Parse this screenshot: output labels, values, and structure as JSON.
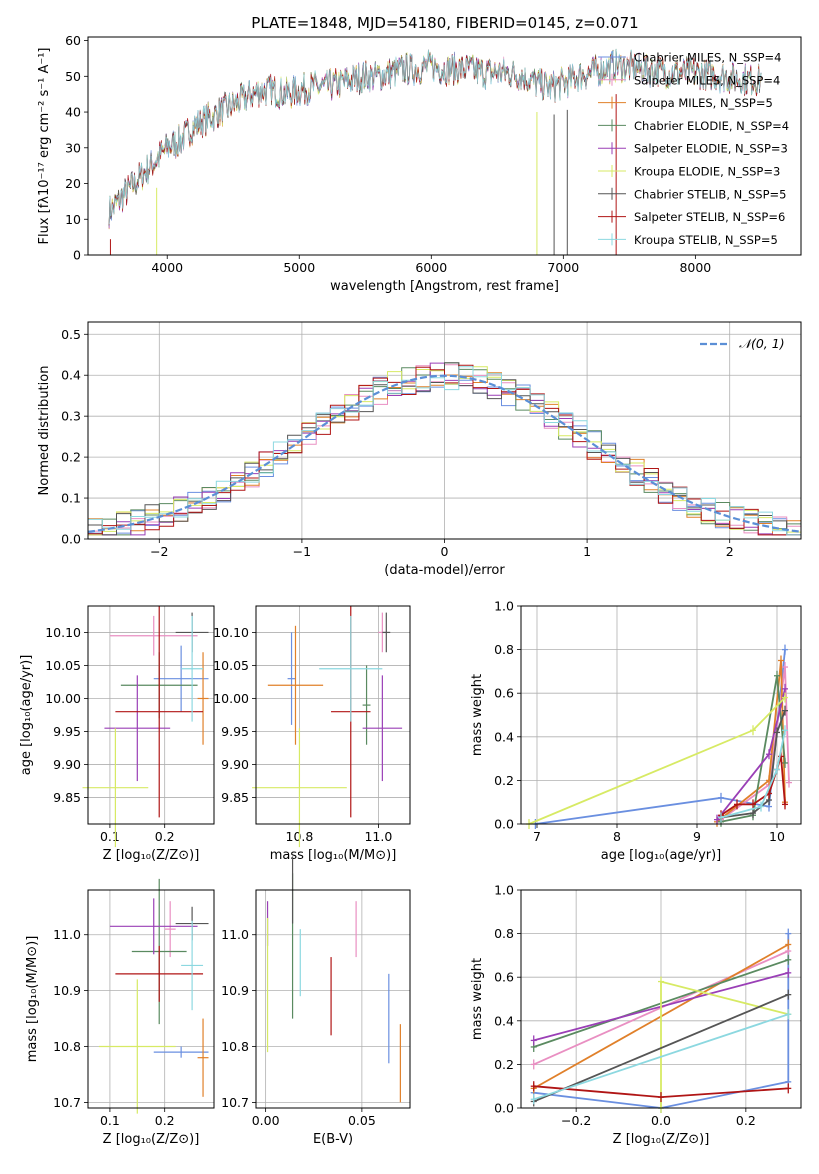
{
  "figure": {
    "title": "PLATE=1848, MJD=54180, FIBERID=0145, z=0.071"
  },
  "colors": [
    "#6a8fe0",
    "#e98fc2",
    "#e0802a",
    "#5a8a60",
    "#9a3fb6",
    "#d7ea64",
    "#555555",
    "#b01515",
    "#8cd8e0"
  ],
  "chart_data": [
    {
      "id": "spectrum",
      "type": "line",
      "xlabel": "wavelength [Angstrom, rest frame]",
      "ylabel": "Flux [fλ10⁻¹⁷ erg cm⁻² s⁻¹ A⁻¹]",
      "xlim": [
        3400,
        8800
      ],
      "ylim": [
        0,
        61
      ],
      "xticks": [
        "4000",
        "5000",
        "6000",
        "7000",
        "8000"
      ],
      "yticks": [
        "0",
        "10",
        "20",
        "30",
        "40",
        "50",
        "60"
      ],
      "legend": "top-right",
      "series": [
        {
          "name": "Chabrier MILES, N_SSP=4"
        },
        {
          "name": "Salpeter MILES, N_SSP=4"
        },
        {
          "name": "Kroupa MILES, N_SSP=5"
        },
        {
          "name": "Chabrier ELODIE, N_SSP=4"
        },
        {
          "name": "Salpeter ELODIE, N_SSP=3"
        },
        {
          "name": "Kroupa ELODIE, N_SSP=3"
        },
        {
          "name": "Chabrier STELIB, N_SSP=5"
        },
        {
          "name": "Salpeter STELIB, N_SSP=6"
        },
        {
          "name": "Kroupa STELIB, N_SSP=5"
        }
      ],
      "spectrum_shape": [
        [
          3560,
          12
        ],
        [
          3700,
          18
        ],
        [
          3800,
          22
        ],
        [
          3900,
          26
        ],
        [
          4000,
          30
        ],
        [
          4100,
          32
        ],
        [
          4200,
          36
        ],
        [
          4300,
          38
        ],
        [
          4400,
          40
        ],
        [
          4500,
          42
        ],
        [
          4600,
          44
        ],
        [
          4700,
          46
        ],
        [
          4800,
          46
        ],
        [
          4900,
          45
        ],
        [
          5000,
          46
        ],
        [
          5100,
          47
        ],
        [
          5200,
          47
        ],
        [
          5300,
          48
        ],
        [
          5400,
          49
        ],
        [
          5500,
          50
        ],
        [
          5600,
          50
        ],
        [
          5700,
          51
        ],
        [
          5800,
          52
        ],
        [
          5900,
          52
        ],
        [
          6000,
          53
        ],
        [
          6100,
          52
        ],
        [
          6200,
          52
        ],
        [
          6300,
          52
        ],
        [
          6400,
          51
        ],
        [
          6500,
          51
        ],
        [
          6600,
          51
        ],
        [
          6700,
          50
        ],
        [
          6800,
          48
        ],
        [
          6900,
          47
        ],
        [
          7000,
          48
        ],
        [
          7100,
          50
        ],
        [
          7200,
          51
        ],
        [
          7300,
          52
        ],
        [
          7400,
          53
        ],
        [
          7600,
          52
        ],
        [
          7800,
          51
        ],
        [
          8000,
          51
        ],
        [
          8200,
          50
        ],
        [
          8400,
          49
        ],
        [
          8500,
          49
        ]
      ],
      "dropouts": [
        3570,
        3920,
        6800,
        6930,
        7030,
        7400
      ]
    },
    {
      "id": "residuals",
      "type": "line",
      "xlabel": "(data-model)/error",
      "ylabel": "Normed distribution",
      "xlim": [
        -2.5,
        2.5
      ],
      "ylim": [
        0,
        0.53
      ],
      "xticks": [
        "−2",
        "−1",
        "0",
        "1",
        "2"
      ],
      "xtick_values": [
        -2,
        -1,
        0,
        1,
        2
      ],
      "yticks": [
        "0.0",
        "0.1",
        "0.2",
        "0.3",
        "0.4",
        "0.5"
      ],
      "legend": "top-right",
      "reference_label": "𝒩(0, 1)"
    },
    {
      "id": "age-vs-Z",
      "type": "scatter",
      "xlabel": "Z [log₁₀(Z/Z⊙)]",
      "ylabel": "age  [log₁₀(age/yr)]",
      "xlim": [
        0.06,
        0.29
      ],
      "ylim": [
        9.81,
        10.14
      ],
      "xticks": [
        "0.1",
        "0.2"
      ],
      "xtick_values": [
        0.1,
        0.2
      ],
      "yticks": [
        "9.85",
        "9.90",
        "9.95",
        "10.00",
        "10.05",
        "10.10"
      ],
      "ytick_values": [
        9.85,
        9.9,
        9.95,
        10.0,
        10.05,
        10.1
      ],
      "points": [
        {
          "x": 0.23,
          "xerr": 0.05,
          "y": 10.03,
          "yerr": 0.05
        },
        {
          "x": 0.18,
          "xerr": 0.08,
          "y": 10.095,
          "yerr": 0.03
        },
        {
          "x": 0.27,
          "xerr": 0.01,
          "y": 10.0,
          "yerr": 0.07
        },
        {
          "x": 0.19,
          "xerr": 0.07,
          "y": 10.02,
          "yerr": 0.05
        },
        {
          "x": 0.15,
          "xerr": 0.06,
          "y": 9.955,
          "yerr": 0.08
        },
        {
          "x": 0.11,
          "xerr": 0.06,
          "y": 9.865,
          "yerr": 0.09
        },
        {
          "x": 0.25,
          "xerr": 0.03,
          "y": 10.1,
          "yerr": 0.03
        },
        {
          "x": 0.19,
          "xerr": 0.08,
          "y": 9.98,
          "yerr": 0.16
        },
        {
          "x": 0.25,
          "xerr": 0.02,
          "y": 10.045,
          "yerr": 0.08
        }
      ]
    },
    {
      "id": "age-vs-mass",
      "type": "scatter",
      "xlabel": "mass [log₁₀(M/M⊙)]",
      "ylabel": "",
      "xlim": [
        10.69,
        11.08
      ],
      "ylim": [
        9.81,
        10.14
      ],
      "xticks": [
        "10.8",
        "11.0"
      ],
      "xtick_values": [
        10.8,
        11.0
      ],
      "yticks": [
        "9.85",
        "9.90",
        "9.95",
        "10.00",
        "10.05",
        "10.10"
      ],
      "ytick_values": [
        9.85,
        9.9,
        9.95,
        10.0,
        10.05,
        10.1
      ],
      "points": [
        {
          "x": 10.78,
          "xerr": 0.01,
          "y": 10.03,
          "yerr": 0.07
        },
        {
          "x": 11.01,
          "xerr": 0.01,
          "y": 10.1,
          "yerr": 0.03
        },
        {
          "x": 10.79,
          "xerr": 0.07,
          "y": 10.02,
          "yerr": 0.09
        },
        {
          "x": 10.97,
          "xerr": 0.01,
          "y": 9.99,
          "yerr": 0.06
        },
        {
          "x": 11.01,
          "xerr": 0.05,
          "y": 9.955,
          "yerr": 0.08
        },
        {
          "x": 10.8,
          "xerr": 0.12,
          "y": 9.865,
          "yerr": 0.09
        },
        {
          "x": 11.02,
          "xerr": 0.01,
          "y": 10.1,
          "yerr": 0.03
        },
        {
          "x": 10.93,
          "xerr": 0.05,
          "y": 9.98,
          "yerr": 0.16
        },
        {
          "x": 10.93,
          "xerr": 0.08,
          "y": 10.045,
          "yerr": 0.08
        }
      ]
    },
    {
      "id": "weight-vs-age",
      "type": "line",
      "xlabel": "age  [log₁₀(age/yr)]",
      "ylabel": "mass weight",
      "xlim": [
        6.8,
        10.3
      ],
      "ylim": [
        0,
        1
      ],
      "xticks": [
        "7",
        "8",
        "9",
        "10"
      ],
      "xtick_values": [
        7,
        8,
        9,
        10
      ],
      "yticks": [
        "0.0",
        "0.2",
        "0.4",
        "0.6",
        "0.8",
        "1.0"
      ],
      "ytick_values": [
        0,
        0.2,
        0.4,
        0.6,
        0.8,
        1.0
      ],
      "series": [
        {
          "x": [
            6.98,
            9.3,
            9.9,
            10.1
          ],
          "y": [
            0.0,
            0.12,
            0.08,
            0.8
          ]
        },
        {
          "x": [
            9.3,
            9.9,
            10.1,
            10.15
          ],
          "y": [
            0.02,
            0.18,
            0.72,
            0.19
          ]
        },
        {
          "x": [
            9.25,
            9.9,
            10.05,
            10.1
          ],
          "y": [
            0.01,
            0.2,
            0.75,
            0.1
          ]
        },
        {
          "x": [
            9.3,
            9.7,
            10.0,
            10.1
          ],
          "y": [
            0.01,
            0.04,
            0.68,
            0.28
          ]
        },
        {
          "x": [
            9.25,
            9.9,
            10.1
          ],
          "y": [
            0.02,
            0.32,
            0.62
          ]
        },
        {
          "x": [
            6.9,
            9.7,
            10.1
          ],
          "y": [
            0.0,
            0.43,
            0.58
          ]
        },
        {
          "x": [
            9.3,
            9.7,
            9.9,
            10.0,
            10.1
          ],
          "y": [
            0.03,
            0.05,
            0.11,
            0.42,
            0.52
          ]
        },
        {
          "x": [
            9.3,
            9.5,
            9.7,
            9.9,
            10.0,
            10.05,
            10.1
          ],
          "y": [
            0.04,
            0.09,
            0.09,
            0.14,
            0.25,
            0.31,
            0.09
          ]
        },
        {
          "x": [
            9.3,
            9.8,
            10.0,
            10.1
          ],
          "y": [
            0.03,
            0.08,
            0.25,
            0.43
          ]
        }
      ]
    },
    {
      "id": "mass-vs-Z",
      "type": "scatter",
      "xlabel": "Z [log₁₀(Z/Z⊙)]",
      "ylabel": "mass [log₁₀(M/M⊙)]",
      "xlim": [
        0.06,
        0.29
      ],
      "ylim": [
        10.69,
        11.08
      ],
      "xticks": [
        "0.1",
        "0.2"
      ],
      "xtick_values": [
        0.1,
        0.2
      ],
      "yticks": [
        "10.7",
        "10.8",
        "10.9",
        "11.0"
      ],
      "ytick_values": [
        10.7,
        10.8,
        10.9,
        11.0
      ],
      "points": [
        {
          "x": 0.23,
          "xerr": 0.05,
          "y": 10.79,
          "yerr": 0.01
        },
        {
          "x": 0.21,
          "xerr": 0.01,
          "y": 11.01,
          "yerr": 0.05
        },
        {
          "x": 0.27,
          "xerr": 0.01,
          "y": 10.78,
          "yerr": 0.07
        },
        {
          "x": 0.19,
          "xerr": 0.05,
          "y": 10.97,
          "yerr": 0.13
        },
        {
          "x": 0.18,
          "xerr": 0.08,
          "y": 11.015,
          "yerr": 0.05
        },
        {
          "x": 0.15,
          "xerr": 0.07,
          "y": 10.8,
          "yerr": 0.12
        },
        {
          "x": 0.25,
          "xerr": 0.03,
          "y": 11.02,
          "yerr": 0.03
        },
        {
          "x": 0.19,
          "xerr": 0.08,
          "y": 10.93,
          "yerr": 0.05
        },
        {
          "x": 0.25,
          "xerr": 0.02,
          "y": 10.945,
          "yerr": 0.08
        }
      ]
    },
    {
      "id": "mass-vs-EBV",
      "type": "scatter",
      "xlabel": "E(B-V)",
      "ylabel": "",
      "xlim": [
        -0.005,
        0.075
      ],
      "ylim": [
        10.69,
        11.08
      ],
      "xticks": [
        "0.00",
        "0.05"
      ],
      "xtick_values": [
        0.0,
        0.05
      ],
      "yticks": [
        "10.7",
        "10.8",
        "10.9",
        "11.0"
      ],
      "ytick_values": [
        10.7,
        10.8,
        10.9,
        11.0
      ],
      "points": [
        {
          "x": 0.064,
          "xerr": 0,
          "y": 10.85,
          "yerr": 0.08
        },
        {
          "x": 0.047,
          "xerr": 0,
          "y": 11.01,
          "yerr": 0.05
        },
        {
          "x": 0.07,
          "xerr": 0,
          "y": 10.77,
          "yerr": 0.07
        },
        {
          "x": 0.014,
          "xerr": 0,
          "y": 10.98,
          "yerr": 0.13
        },
        {
          "x": 0.001,
          "xerr": 0,
          "y": 11.02,
          "yerr": 0.04
        },
        {
          "x": 0.001,
          "xerr": 0,
          "y": 10.91,
          "yerr": 0.12
        },
        {
          "x": 0.014,
          "xerr": 0,
          "y": 11.08,
          "yerr": 0.06
        },
        {
          "x": 0.034,
          "xerr": 0,
          "y": 10.89,
          "yerr": 0.07
        },
        {
          "x": 0.018,
          "xerr": 0,
          "y": 10.95,
          "yerr": 0.06
        }
      ]
    },
    {
      "id": "weight-vs-Z",
      "type": "line",
      "xlabel": "Z [log₁₀(Z/Z⊙)]",
      "ylabel": "mass weight",
      "xlim": [
        -0.33,
        0.33
      ],
      "ylim": [
        0,
        1
      ],
      "xticks": [
        "−0.2",
        "0.0",
        "0.2"
      ],
      "xtick_values": [
        -0.2,
        0.0,
        0.2
      ],
      "yticks": [
        "0.0",
        "0.2",
        "0.4",
        "0.6",
        "0.8",
        "1.0"
      ],
      "ytick_values": [
        0,
        0.2,
        0.4,
        0.6,
        0.8,
        1.0
      ],
      "series": [
        {
          "x": [
            -0.3,
            0.0,
            0.3,
            0.3
          ],
          "y": [
            0.07,
            0.0,
            0.12,
            0.8
          ]
        },
        {
          "x": [
            -0.3,
            0.3
          ],
          "y": [
            0.2,
            0.72
          ]
        },
        {
          "x": [
            -0.3,
            0.3
          ],
          "y": [
            0.09,
            0.75
          ]
        },
        {
          "x": [
            -0.3,
            0.3
          ],
          "y": [
            0.28,
            0.68
          ]
        },
        {
          "x": [
            -0.3,
            0.3
          ],
          "y": [
            0.31,
            0.62
          ]
        },
        {
          "x": [
            0.0,
            0.0,
            0.3
          ],
          "y": [
            0.0,
            0.58,
            0.43
          ]
        },
        {
          "x": [
            -0.3,
            0.3
          ],
          "y": [
            0.03,
            0.52
          ]
        },
        {
          "x": [
            -0.3,
            0.0,
            0.3
          ],
          "y": [
            0.1,
            0.05,
            0.09
          ]
        },
        {
          "x": [
            -0.3,
            0.3
          ],
          "y": [
            0.04,
            0.43
          ]
        }
      ]
    }
  ]
}
